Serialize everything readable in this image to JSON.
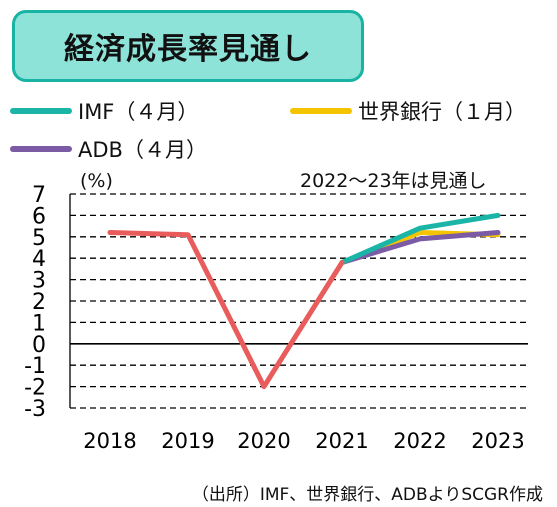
{
  "title": "経済成長率見通し",
  "legend": [
    {
      "label": "IMF（４月）",
      "color": "#1ab5a6"
    },
    {
      "label": "世界銀行（１月）",
      "color": "#f5c400"
    },
    {
      "label": "ADB（４月）",
      "color": "#7b5aa6"
    }
  ],
  "note": "2022～23年は見通し",
  "unit": "(%)",
  "source": "（出所）IMF、世界銀行、ADBよりSCGR作成",
  "chart_data": {
    "type": "line",
    "x": [
      "2018",
      "2019",
      "2020",
      "2021",
      "2022",
      "2023"
    ],
    "ylim": [
      -3,
      7
    ],
    "yticks": [
      "7",
      "6",
      "5",
      "4",
      "3",
      "2",
      "1",
      "0",
      "-1",
      "-2",
      "-3"
    ],
    "grid": "dashed horizontal",
    "series": [
      {
        "name": "IMF（４月）",
        "color": "#1ab5a6",
        "values": [
          null,
          null,
          null,
          3.8,
          5.4,
          6.0
        ]
      },
      {
        "name": "世界銀行（１月）",
        "color": "#f5c400",
        "values": [
          null,
          null,
          null,
          3.8,
          5.2,
          5.1
        ]
      },
      {
        "name": "ADB（４月）",
        "color": "#7b5aa6",
        "values": [
          null,
          null,
          null,
          3.8,
          4.9,
          5.2
        ]
      },
      {
        "color": "#e85c5c",
        "values": [
          5.2,
          5.1,
          -2.0,
          3.8,
          null,
          null
        ]
      }
    ]
  }
}
